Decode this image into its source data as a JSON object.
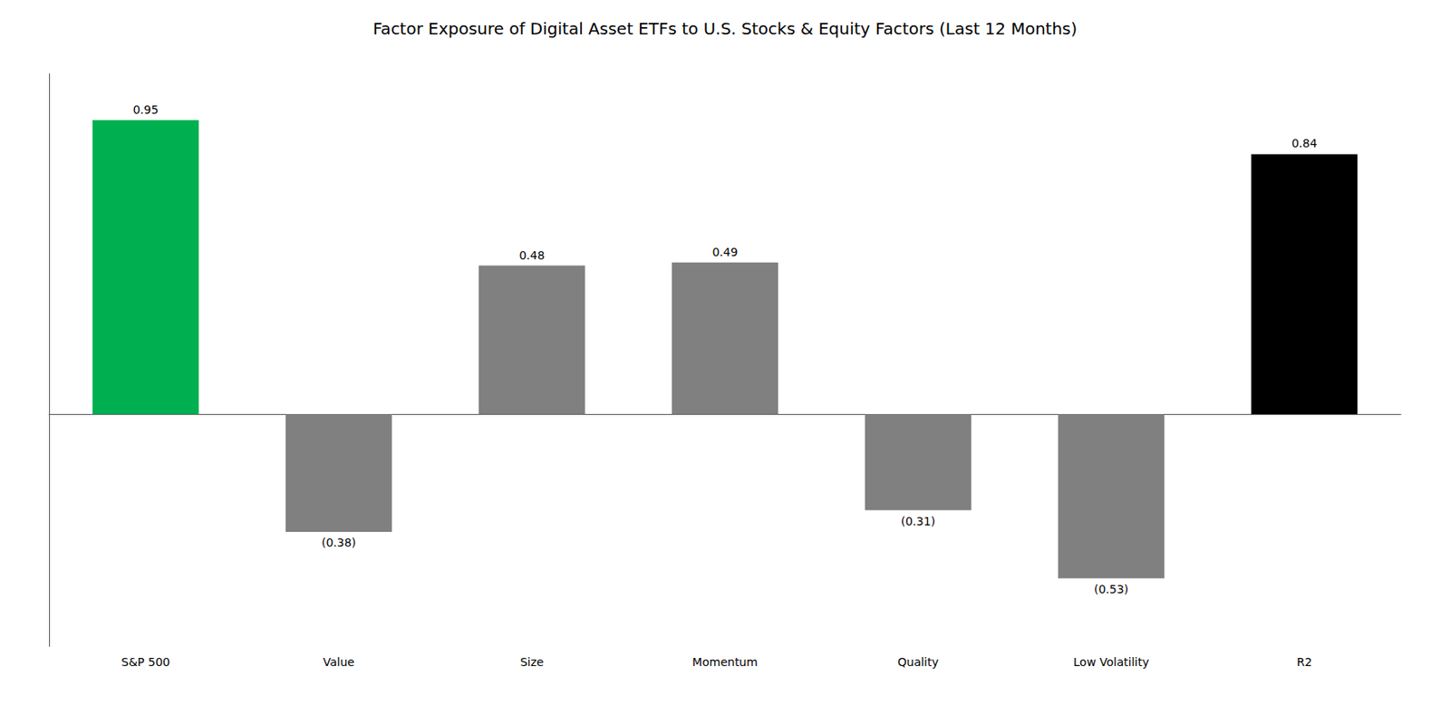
{
  "chart_data": {
    "type": "bar",
    "title": "Factor Exposure of Digital Asset ETFs to U.S. Stocks & Equity Factors (Last 12 Months)",
    "categories": [
      "S&P 500",
      "Value",
      "Size",
      "Momentum",
      "Quality",
      "Low Volatility",
      "R2"
    ],
    "values": [
      0.95,
      -0.38,
      0.48,
      0.49,
      -0.31,
      -0.53,
      0.84
    ],
    "value_labels": [
      "0.95",
      "(0.38)",
      "0.48",
      "0.49",
      "(0.31)",
      "(0.53)",
      "0.84"
    ],
    "colors": [
      "#00b050",
      "#808080",
      "#808080",
      "#808080",
      "#808080",
      "#808080",
      "#000000"
    ],
    "ylim": [
      -0.75,
      1.1
    ],
    "data_labels": true,
    "tick_labels": "x",
    "grid": false
  }
}
